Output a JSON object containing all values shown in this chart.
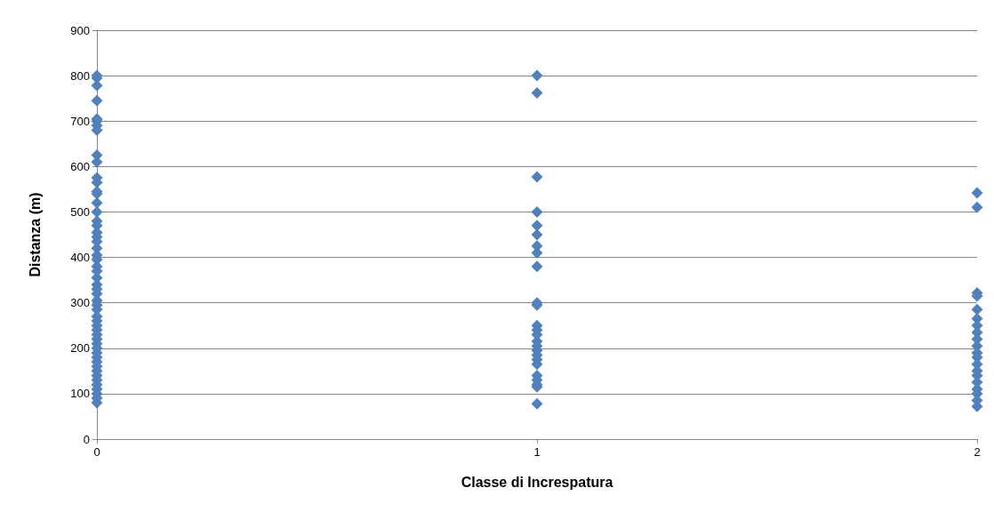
{
  "chart_data": {
    "type": "scatter",
    "xlabel": "Classe di Increspatura",
    "ylabel": "Distanza (m)",
    "x": [
      0,
      0,
      0,
      0,
      0,
      0,
      0,
      0,
      0,
      0,
      0,
      0,
      0,
      0,
      0,
      0,
      0,
      0,
      0,
      0,
      0,
      0,
      0,
      0,
      0,
      0,
      0,
      0,
      0,
      0,
      0,
      0,
      0,
      0,
      0,
      0,
      0,
      0,
      0,
      0,
      0,
      0,
      0,
      0,
      0,
      0,
      0,
      0,
      0,
      0,
      0,
      0,
      0,
      1,
      1,
      1,
      1,
      1,
      1,
      1,
      1,
      1,
      1,
      1,
      1,
      1,
      1,
      1,
      1,
      1,
      1,
      1,
      1,
      1,
      1,
      1,
      1,
      1,
      2,
      2,
      2,
      2,
      2,
      2,
      2,
      2,
      2,
      2,
      2,
      2,
      2,
      2,
      2,
      2,
      2,
      2,
      2,
      2
    ],
    "series": [
      {
        "color": "#4f81bd",
        "values": [
          800,
          795,
          778,
          745,
          705,
          700,
          690,
          680,
          625,
          610,
          575,
          565,
          545,
          540,
          520,
          500,
          480,
          470,
          455,
          445,
          435,
          420,
          405,
          395,
          380,
          370,
          355,
          340,
          330,
          320,
          305,
          295,
          285,
          270,
          260,
          250,
          240,
          230,
          220,
          210,
          200,
          190,
          180,
          170,
          160,
          150,
          140,
          130,
          120,
          110,
          100,
          90,
          80,
          800,
          762,
          577,
          500,
          470,
          450,
          425,
          410,
          380,
          300,
          295,
          250,
          240,
          230,
          215,
          205,
          195,
          185,
          175,
          165,
          140,
          130,
          120,
          115,
          78,
          542,
          510,
          322,
          315,
          285,
          265,
          250,
          235,
          220,
          205,
          190,
          180,
          165,
          150,
          140,
          125,
          110,
          100,
          85,
          72
        ]
      }
    ],
    "xlim": [
      0,
      2
    ],
    "xticks": [
      0,
      1,
      2
    ],
    "ylim": [
      0,
      900
    ],
    "yticks": [
      0,
      100,
      200,
      300,
      400,
      500,
      600,
      700,
      800,
      900
    ],
    "grid": "y",
    "marker": "diamond"
  }
}
